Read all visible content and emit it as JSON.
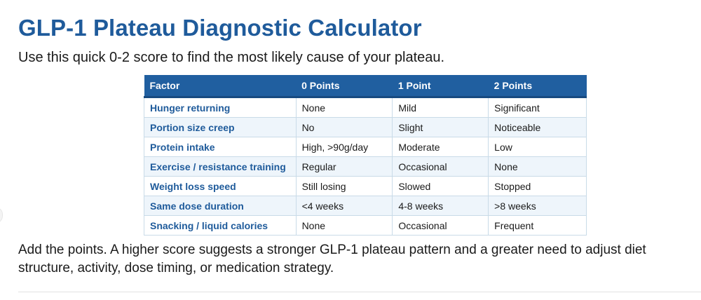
{
  "page": {
    "title": "GLP-1 Plateau Diagnostic Calculator",
    "intro": "Use this quick 0-2 score to find the most likely cause of your plateau.",
    "outro": "Add the points. A higher score suggests a stronger GLP-1 plateau pattern and a greater need to adjust diet structure, activity, dose timing, or medication strategy."
  },
  "colors": {
    "heading": "#1f5b9b",
    "table_header_bg": "#205fa0",
    "row_alt_bg": "#eef5fb",
    "border": "#c9dbe8"
  },
  "table": {
    "headers": [
      "Factor",
      "0 Points",
      "1 Point",
      "2 Points"
    ],
    "rows": [
      [
        "Hunger returning",
        "None",
        "Mild",
        "Significant"
      ],
      [
        "Portion size creep",
        "No",
        "Slight",
        "Noticeable"
      ],
      [
        "Protein intake",
        "High, >90g/day",
        "Moderate",
        "Low"
      ],
      [
        "Exercise / resistance training",
        "Regular",
        "Occasional",
        "None"
      ],
      [
        "Weight loss speed",
        "Still losing",
        "Slowed",
        "Stopped"
      ],
      [
        "Same dose duration",
        "<4 weeks",
        "4-8 weeks",
        ">8 weeks"
      ],
      [
        "Snacking / liquid calories",
        "None",
        "Occasional",
        "Frequent"
      ]
    ]
  }
}
